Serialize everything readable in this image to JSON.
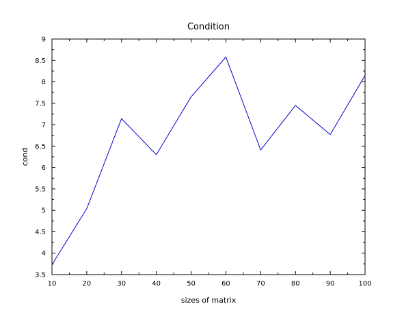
{
  "chart_data": {
    "type": "line",
    "title": "Condition",
    "xlabel": "sizes of matrix",
    "ylabel": "cond",
    "xlim": [
      10,
      100
    ],
    "ylim": [
      3.5,
      9
    ],
    "xticks": [
      10,
      20,
      30,
      40,
      50,
      60,
      70,
      80,
      90,
      100
    ],
    "yticks": [
      3.5,
      4,
      4.5,
      5,
      5.5,
      6,
      6.5,
      7,
      7.5,
      8,
      8.5,
      9
    ],
    "ytick_labels": [
      "3.5",
      "4",
      "4.5",
      "5",
      "5.5",
      "6",
      "6.5",
      "7",
      "7.5",
      "8",
      "8.5",
      "9"
    ],
    "grid": false,
    "x": [
      10,
      20,
      30,
      40,
      50,
      60,
      70,
      80,
      90,
      100
    ],
    "series": [
      {
        "values": [
          3.73,
          5.04,
          7.14,
          6.3,
          7.65,
          8.58,
          6.41,
          7.45,
          6.77,
          8.15
        ],
        "color": "#0000cc"
      }
    ]
  }
}
